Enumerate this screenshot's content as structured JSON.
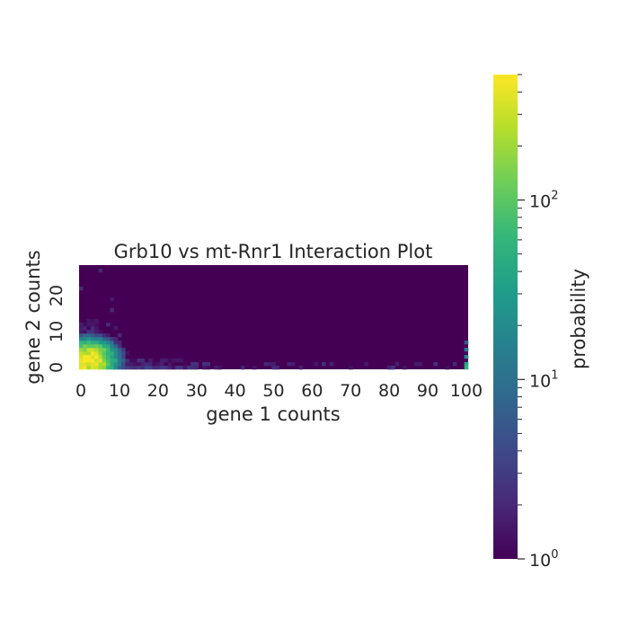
{
  "chart_data": {
    "type": "heatmap",
    "title": "Grb10 vs mt-Rnr1 Interaction Plot",
    "xlabel": "gene 1 counts",
    "ylabel": "gene 2 counts",
    "x_range": [
      0,
      100
    ],
    "y_range": [
      0,
      28
    ],
    "x_ticks": [
      "0",
      "10",
      "20",
      "30",
      "40",
      "50",
      "60",
      "70",
      "80",
      "90",
      "100"
    ],
    "y_ticks": [
      "0",
      "10",
      "20"
    ],
    "colorbar": {
      "label": "probability",
      "scale": "log",
      "range": [
        1,
        500
      ],
      "ticks": [
        {
          "base": "10",
          "exp": "0"
        },
        {
          "base": "10",
          "exp": "1"
        },
        {
          "base": "10",
          "exp": "2"
        }
      ]
    },
    "colormap": [
      "#440154",
      "#482878",
      "#3e4989",
      "#31688e",
      "#26828e",
      "#1f9e89",
      "#35b779",
      "#6ece58",
      "#b5de2b",
      "#fde725"
    ],
    "background_color": "#440154",
    "hotspot": {
      "x": 2,
      "y": 2,
      "peak_probability": 500
    },
    "note_cells": [
      {
        "x": 0,
        "y": 22,
        "value": 2
      },
      {
        "x": 5,
        "y": 27,
        "value": 2
      },
      {
        "x": 8,
        "y": 19,
        "value": 1.5
      },
      {
        "x": 8,
        "y": 16,
        "value": 2
      },
      {
        "x": 7,
        "y": 12,
        "value": 2
      },
      {
        "x": 9,
        "y": 11,
        "value": 1.5
      },
      {
        "x": 10,
        "y": 9,
        "value": 2
      },
      {
        "x": 100,
        "y": 7,
        "value": 6
      },
      {
        "x": 100,
        "y": 5,
        "value": 12
      },
      {
        "x": 100,
        "y": 3,
        "value": 20
      },
      {
        "x": 100,
        "y": 1,
        "value": 40
      },
      {
        "x": 100,
        "y": 0,
        "value": 60
      }
    ]
  }
}
